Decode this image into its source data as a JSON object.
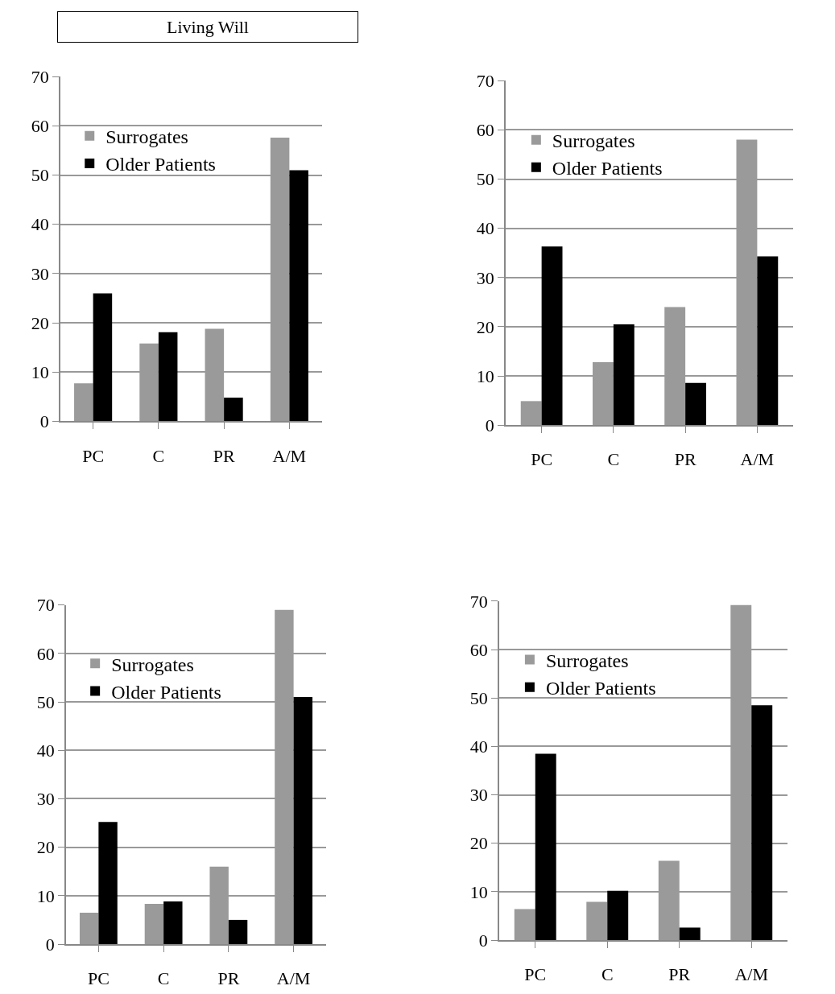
{
  "chart_data": [
    {
      "type": "bar",
      "title": "Living Will",
      "categories": [
        "PC",
        "C",
        "PR",
        "A/M"
      ],
      "series": [
        {
          "name": "Surrogates",
          "color": "#9a9a9a",
          "values": [
            7.7,
            15.8,
            18.8,
            57.6
          ]
        },
        {
          "name": "Older Patients",
          "color": "#000000",
          "values": [
            26,
            18.1,
            4.8,
            51
          ]
        }
      ],
      "ylim": [
        0,
        70
      ],
      "yticks": [
        0,
        10,
        20,
        30,
        40,
        50,
        60,
        70
      ],
      "grid": "y",
      "legend": "top left"
    },
    {
      "type": "bar",
      "categories": [
        "PC",
        "C",
        "PR",
        "A/M"
      ],
      "series": [
        {
          "name": "Surrogates",
          "color": "#9a9a9a",
          "values": [
            4.9,
            12.8,
            24,
            58
          ]
        },
        {
          "name": "Older Patients",
          "color": "#000000",
          "values": [
            36.3,
            20.5,
            8.6,
            34.3
          ]
        }
      ],
      "ylim": [
        0,
        70
      ],
      "yticks": [
        0,
        10,
        20,
        30,
        40,
        50,
        60,
        70
      ],
      "grid": "y",
      "legend": "top left"
    },
    {
      "type": "bar",
      "categories": [
        "PC",
        "C",
        "PR",
        "A/M"
      ],
      "series": [
        {
          "name": "Surrogates",
          "color": "#9a9a9a",
          "values": [
            6.5,
            8.3,
            16,
            69
          ]
        },
        {
          "name": "Older Patients",
          "color": "#000000",
          "values": [
            25.2,
            8.8,
            5,
            51
          ]
        }
      ],
      "ylim": [
        0,
        70
      ],
      "yticks": [
        0,
        10,
        20,
        30,
        40,
        50,
        60,
        70
      ],
      "grid": "y",
      "legend": "top left"
    },
    {
      "type": "bar",
      "categories": [
        "PC",
        "C",
        "PR",
        "A/M"
      ],
      "series": [
        {
          "name": "Surrogates",
          "color": "#9a9a9a",
          "values": [
            6.4,
            7.9,
            16.4,
            69.2
          ]
        },
        {
          "name": "Older Patients",
          "color": "#000000",
          "values": [
            38.5,
            10.2,
            2.6,
            48.5
          ]
        }
      ],
      "ylim": [
        0,
        70
      ],
      "yticks": [
        0,
        10,
        20,
        30,
        40,
        50,
        60,
        70
      ],
      "grid": "y",
      "legend": "top left"
    }
  ]
}
